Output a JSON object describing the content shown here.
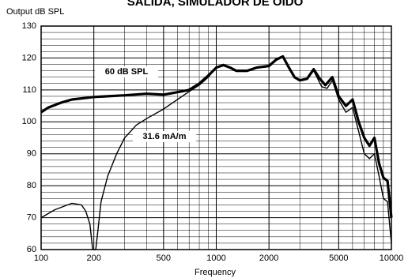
{
  "chart_data": {
    "type": "line",
    "title": "SALIDA, SIMULADOR DE OIDO",
    "y_label": "Output dB SPL",
    "x_label": "Frequency",
    "xscale": "log",
    "xlim": [
      100,
      10000
    ],
    "xticks": [
      100,
      200,
      500,
      1000,
      2000,
      5000,
      10000
    ],
    "ylim": [
      60,
      130
    ],
    "yticks": [
      60,
      70,
      80,
      90,
      100,
      110,
      120,
      130
    ],
    "grid": true,
    "minor_grid": true,
    "series": [
      {
        "name": "60 dB SPL",
        "color": "#000000",
        "line_width": 3.2,
        "x": [
          100,
          110,
          130,
          150,
          200,
          300,
          400,
          500,
          600,
          700,
          800,
          900,
          1000,
          1100,
          1200,
          1300,
          1500,
          1700,
          2000,
          2200,
          2400,
          2600,
          2800,
          3000,
          3300,
          3600,
          3900,
          4200,
          4600,
          5000,
          5500,
          6000,
          6500,
          7000,
          7500,
          8000,
          8500,
          9000,
          9500,
          10000
        ],
        "values": [
          103,
          104.5,
          106,
          107,
          107.8,
          108.3,
          108.8,
          108.5,
          109.3,
          110,
          112,
          114.5,
          117,
          117.8,
          117,
          116,
          116,
          117,
          117.5,
          119.5,
          120.5,
          117,
          114,
          113,
          113.5,
          116.5,
          113.5,
          111.5,
          114,
          108,
          105,
          107,
          100,
          95,
          92.5,
          95,
          87,
          82.5,
          81.5,
          70
        ]
      },
      {
        "name": "31.6 mA/m",
        "color": "#000000",
        "line_width": 1.4,
        "x": [
          100,
          120,
          150,
          170,
          180,
          190,
          197,
          205,
          210,
          220,
          240,
          270,
          300,
          350,
          400,
          500,
          600,
          700,
          800,
          900,
          1000,
          1100,
          1200,
          1300,
          1500,
          1700,
          2000,
          2200,
          2400,
          2600,
          2800,
          3000,
          3300,
          3600,
          4000,
          4300,
          4600,
          5000,
          5500,
          6000,
          6500,
          7000,
          7500,
          8000,
          8500,
          9000,
          9500,
          10000
        ],
        "values": [
          70,
          72.5,
          74.5,
          74,
          72,
          68,
          60,
          60,
          65,
          75,
          83,
          90,
          95,
          99,
          101,
          104,
          107,
          109.5,
          111.5,
          114,
          117,
          117.5,
          116.8,
          115.8,
          115.8,
          116.8,
          117.3,
          119.3,
          120.3,
          116.8,
          113.8,
          112.8,
          113.3,
          116,
          111,
          110.5,
          113,
          107,
          103,
          104.5,
          97,
          90,
          88.5,
          90,
          83,
          76,
          75,
          62
        ]
      }
    ]
  }
}
